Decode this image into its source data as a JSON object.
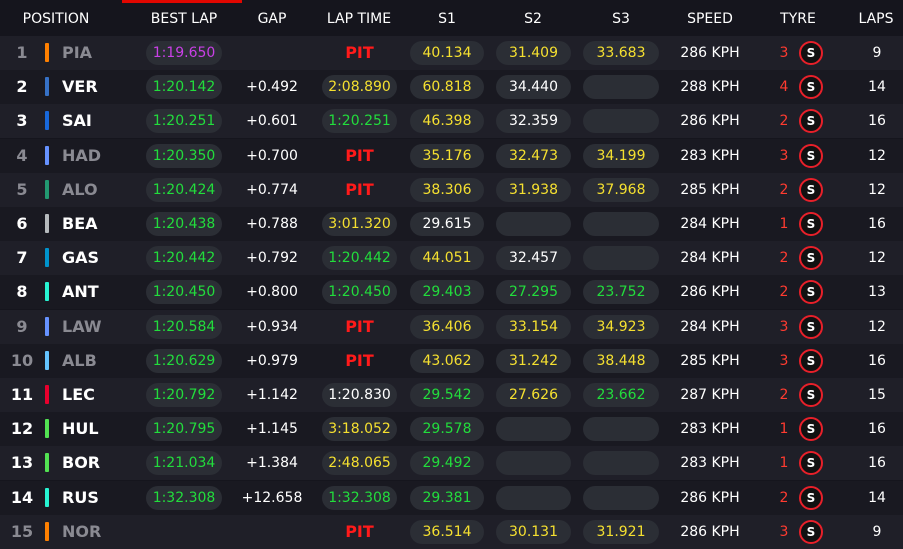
{
  "header": {
    "position": "POSITION",
    "best_lap": "BEST LAP",
    "gap": "GAP",
    "lap_time": "LAP TIME",
    "s1": "S1",
    "s2": "S2",
    "s3": "S3",
    "speed": "SPEED",
    "tyre": "TYRE",
    "laps": "LAPS"
  },
  "colors": {
    "purple": "#c940e6",
    "green": "#22dd3c",
    "yellow": "#f5e030",
    "pit_red": "#ff1a1a",
    "tyre_soft_red": "#e8202a"
  },
  "rows": [
    {
      "pos": "1",
      "code": "PIA",
      "team_color": "#ff8000",
      "out": true,
      "best_lap": "1:19.650",
      "best_color": "purple",
      "gap": "",
      "lap_time": "PIT",
      "lap_color": "pit",
      "s1": "40.134",
      "s1_color": "yellow",
      "s2": "31.409",
      "s2_color": "yellow",
      "s3": "33.683",
      "s3_color": "yellow",
      "speed": "286 KPH",
      "tyre_age": "3",
      "tyre": "S",
      "laps": "9"
    },
    {
      "pos": "2",
      "code": "VER",
      "team_color": "#3671c6",
      "out": false,
      "best_lap": "1:20.142",
      "best_color": "green",
      "gap": "+0.492",
      "lap_time": "2:08.890",
      "lap_color": "yellow",
      "s1": "60.818",
      "s1_color": "yellow",
      "s2": "34.440",
      "s2_color": "white",
      "s3": "",
      "s3_color": "white",
      "speed": "288 KPH",
      "tyre_age": "4",
      "tyre": "S",
      "laps": "14"
    },
    {
      "pos": "3",
      "code": "SAI",
      "team_color": "#1868db",
      "out": false,
      "best_lap": "1:20.251",
      "best_color": "green",
      "gap": "+0.601",
      "lap_time": "1:20.251",
      "lap_color": "green",
      "s1": "46.398",
      "s1_color": "yellow",
      "s2": "32.359",
      "s2_color": "white",
      "s3": "",
      "s3_color": "white",
      "speed": "286 KPH",
      "tyre_age": "2",
      "tyre": "S",
      "laps": "16"
    },
    {
      "pos": "4",
      "code": "HAD",
      "team_color": "#6692ff",
      "out": true,
      "best_lap": "1:20.350",
      "best_color": "green",
      "gap": "+0.700",
      "lap_time": "PIT",
      "lap_color": "pit",
      "s1": "35.176",
      "s1_color": "yellow",
      "s2": "32.473",
      "s2_color": "yellow",
      "s3": "34.199",
      "s3_color": "yellow",
      "speed": "283 KPH",
      "tyre_age": "3",
      "tyre": "S",
      "laps": "12"
    },
    {
      "pos": "5",
      "code": "ALO",
      "team_color": "#229971",
      "out": true,
      "best_lap": "1:20.424",
      "best_color": "green",
      "gap": "+0.774",
      "lap_time": "PIT",
      "lap_color": "pit",
      "s1": "38.306",
      "s1_color": "yellow",
      "s2": "31.938",
      "s2_color": "yellow",
      "s3": "37.968",
      "s3_color": "yellow",
      "speed": "285 KPH",
      "tyre_age": "2",
      "tyre": "S",
      "laps": "12"
    },
    {
      "pos": "6",
      "code": "BEA",
      "team_color": "#b6babd",
      "out": false,
      "best_lap": "1:20.438",
      "best_color": "green",
      "gap": "+0.788",
      "lap_time": "3:01.320",
      "lap_color": "yellow",
      "s1": "29.615",
      "s1_color": "white",
      "s2": "",
      "s2_color": "white",
      "s3": "",
      "s3_color": "white",
      "speed": "284 KPH",
      "tyre_age": "1",
      "tyre": "S",
      "laps": "16"
    },
    {
      "pos": "7",
      "code": "GAS",
      "team_color": "#0093cc",
      "out": false,
      "best_lap": "1:20.442",
      "best_color": "green",
      "gap": "+0.792",
      "lap_time": "1:20.442",
      "lap_color": "green",
      "s1": "44.051",
      "s1_color": "yellow",
      "s2": "32.457",
      "s2_color": "white",
      "s3": "",
      "s3_color": "white",
      "speed": "284 KPH",
      "tyre_age": "2",
      "tyre": "S",
      "laps": "12"
    },
    {
      "pos": "8",
      "code": "ANT",
      "team_color": "#27f4d2",
      "out": false,
      "best_lap": "1:20.450",
      "best_color": "green",
      "gap": "+0.800",
      "lap_time": "1:20.450",
      "lap_color": "green",
      "s1": "29.403",
      "s1_color": "green",
      "s2": "27.295",
      "s2_color": "green",
      "s3": "23.752",
      "s3_color": "green",
      "speed": "286 KPH",
      "tyre_age": "2",
      "tyre": "S",
      "laps": "13"
    },
    {
      "pos": "9",
      "code": "LAW",
      "team_color": "#6692ff",
      "out": true,
      "best_lap": "1:20.584",
      "best_color": "green",
      "gap": "+0.934",
      "lap_time": "PIT",
      "lap_color": "pit",
      "s1": "36.406",
      "s1_color": "yellow",
      "s2": "33.154",
      "s2_color": "yellow",
      "s3": "34.923",
      "s3_color": "yellow",
      "speed": "284 KPH",
      "tyre_age": "3",
      "tyre": "S",
      "laps": "12"
    },
    {
      "pos": "10",
      "code": "ALB",
      "team_color": "#64c4ff",
      "out": true,
      "best_lap": "1:20.629",
      "best_color": "green",
      "gap": "+0.979",
      "lap_time": "PIT",
      "lap_color": "pit",
      "s1": "43.062",
      "s1_color": "yellow",
      "s2": "31.242",
      "s2_color": "yellow",
      "s3": "38.448",
      "s3_color": "yellow",
      "speed": "285 KPH",
      "tyre_age": "3",
      "tyre": "S",
      "laps": "16"
    },
    {
      "pos": "11",
      "code": "LEC",
      "team_color": "#e8002d",
      "out": false,
      "best_lap": "1:20.792",
      "best_color": "green",
      "gap": "+1.142",
      "lap_time": "1:20.830",
      "lap_color": "white",
      "s1": "29.542",
      "s1_color": "green",
      "s2": "27.626",
      "s2_color": "yellow",
      "s3": "23.662",
      "s3_color": "green",
      "speed": "287 KPH",
      "tyre_age": "2",
      "tyre": "S",
      "laps": "15"
    },
    {
      "pos": "12",
      "code": "HUL",
      "team_color": "#52e252",
      "out": false,
      "best_lap": "1:20.795",
      "best_color": "green",
      "gap": "+1.145",
      "lap_time": "3:18.052",
      "lap_color": "yellow",
      "s1": "29.578",
      "s1_color": "green",
      "s2": "",
      "s2_color": "white",
      "s3": "",
      "s3_color": "white",
      "speed": "283 KPH",
      "tyre_age": "1",
      "tyre": "S",
      "laps": "16"
    },
    {
      "pos": "13",
      "code": "BOR",
      "team_color": "#52e252",
      "out": false,
      "best_lap": "1:21.034",
      "best_color": "green",
      "gap": "+1.384",
      "lap_time": "2:48.065",
      "lap_color": "yellow",
      "s1": "29.492",
      "s1_color": "green",
      "s2": "",
      "s2_color": "white",
      "s3": "",
      "s3_color": "white",
      "speed": "283 KPH",
      "tyre_age": "1",
      "tyre": "S",
      "laps": "16"
    },
    {
      "pos": "14",
      "code": "RUS",
      "team_color": "#27f4d2",
      "out": false,
      "best_lap": "1:32.308",
      "best_color": "green",
      "gap": "+12.658",
      "lap_time": "1:32.308",
      "lap_color": "green",
      "s1": "29.381",
      "s1_color": "green",
      "s2": "",
      "s2_color": "white",
      "s3": "",
      "s3_color": "white",
      "speed": "286 KPH",
      "tyre_age": "2",
      "tyre": "S",
      "laps": "14"
    },
    {
      "pos": "15",
      "code": "NOR",
      "team_color": "#ff8000",
      "out": true,
      "best_lap": "",
      "best_color": "green",
      "gap": "",
      "lap_time": "PIT",
      "lap_color": "pit",
      "s1": "36.514",
      "s1_color": "yellow",
      "s2": "30.131",
      "s2_color": "yellow",
      "s3": "31.921",
      "s3_color": "yellow",
      "speed": "286 KPH",
      "tyre_age": "3",
      "tyre": "S",
      "laps": "9"
    }
  ]
}
